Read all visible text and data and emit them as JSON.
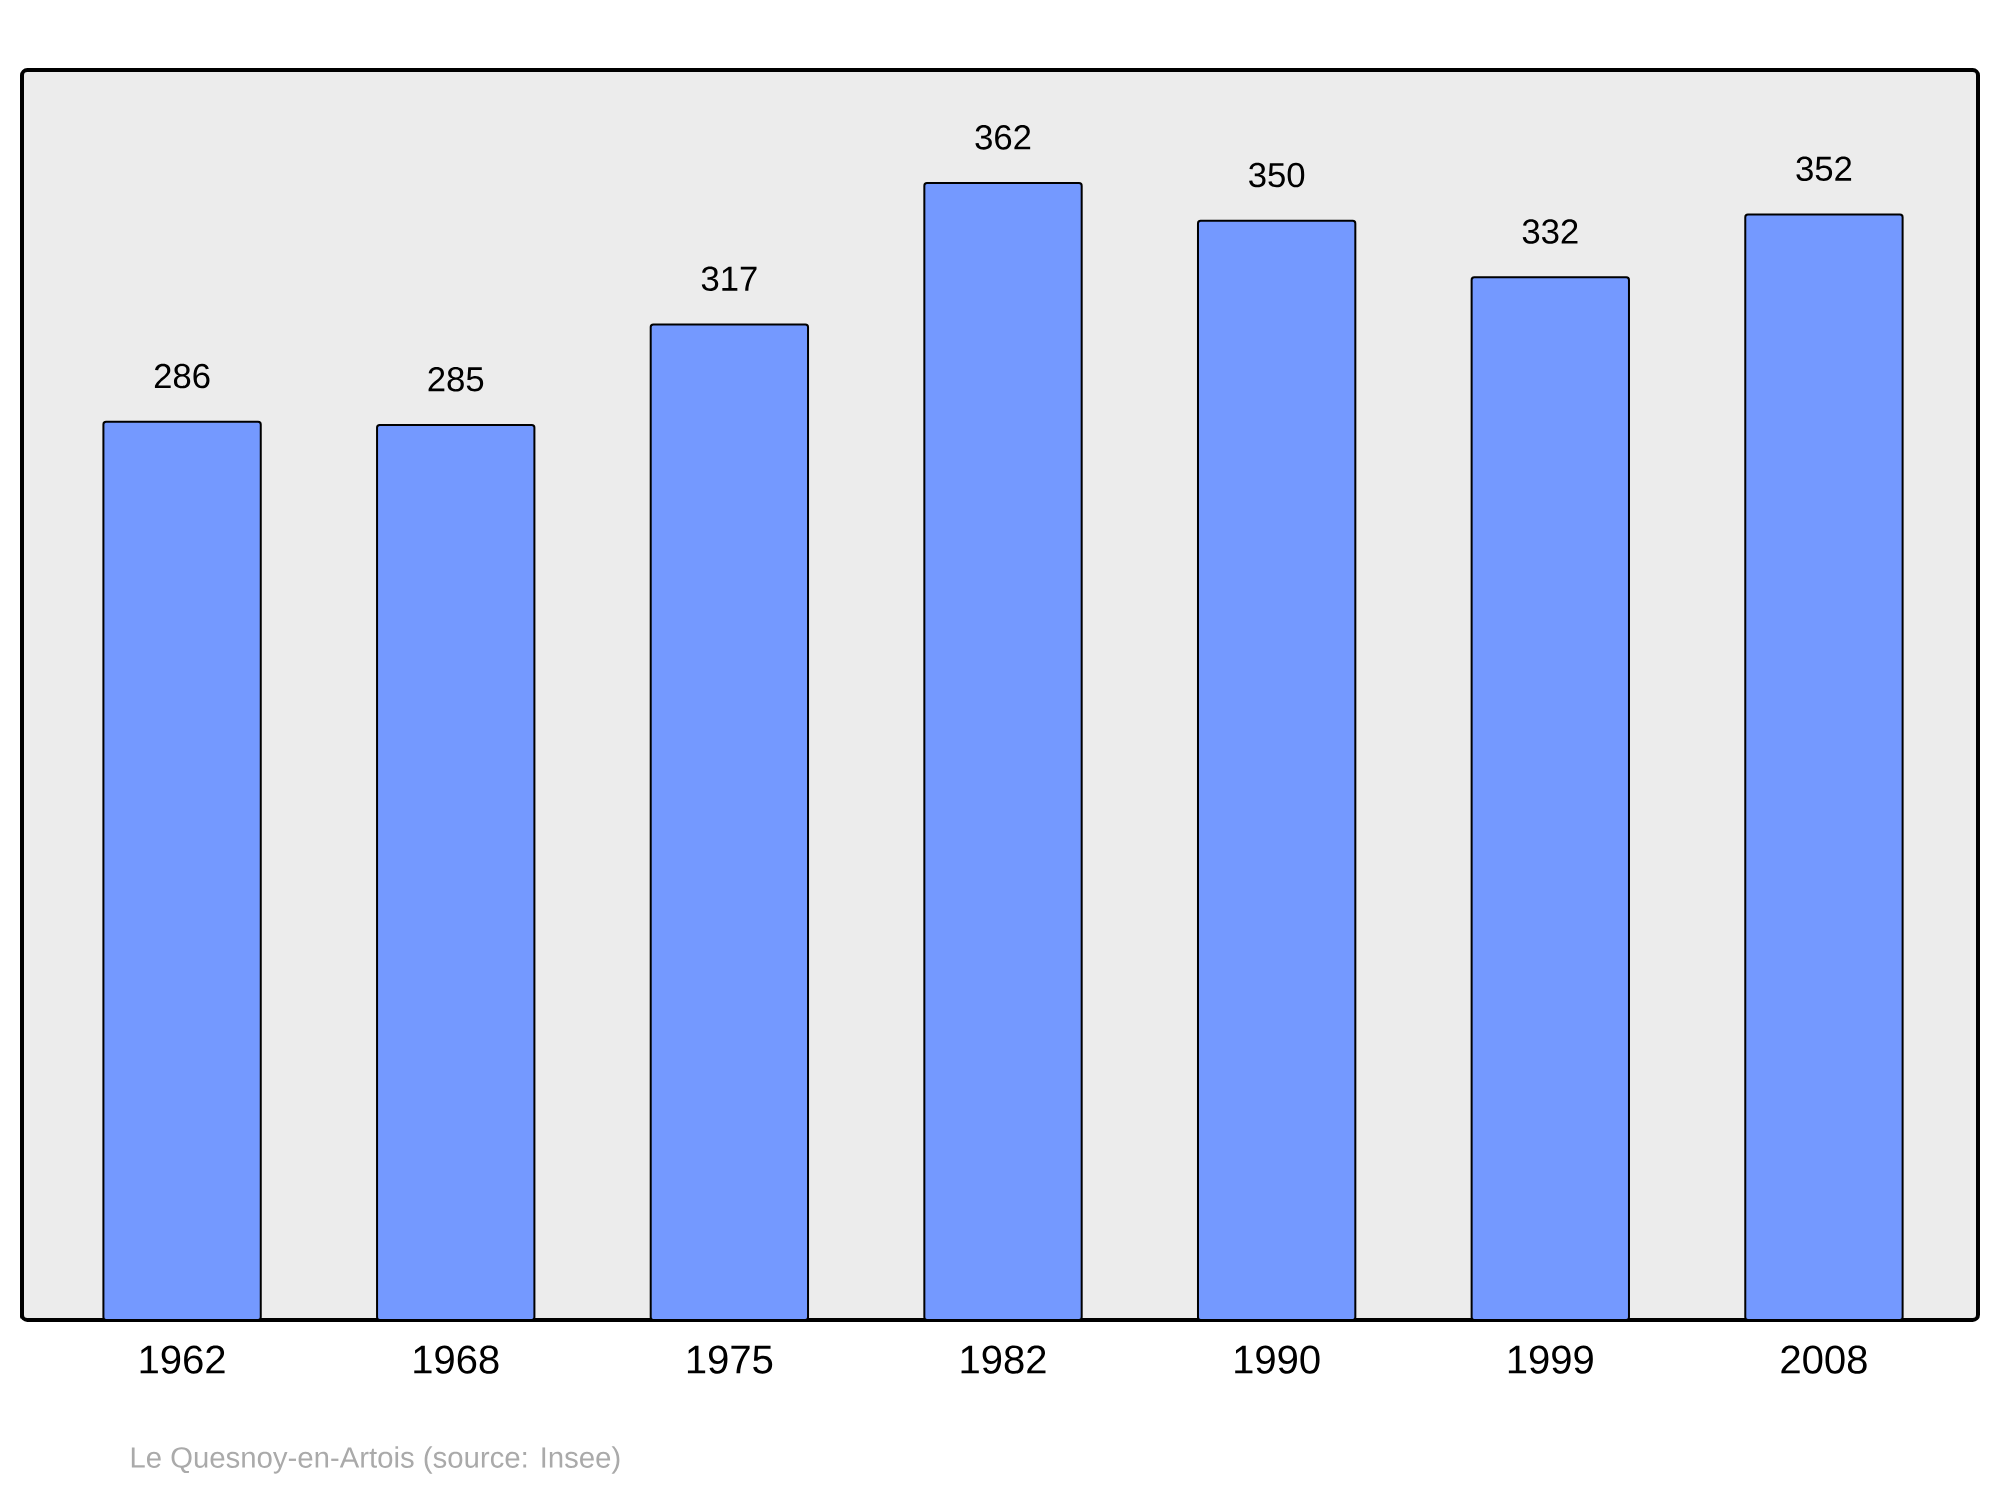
{
  "chart_data": {
    "type": "bar",
    "categories": [
      "1962",
      "1968",
      "1975",
      "1982",
      "1990",
      "1999",
      "2008"
    ],
    "values": [
      286,
      285,
      317,
      362,
      350,
      332,
      352
    ],
    "color": "#7499ff",
    "ylim": [
      0,
      398
    ],
    "data_labels": true,
    "annotations": [
      "Le Quesnoy-en-Artois    (source: Insee)"
    ]
  }
}
